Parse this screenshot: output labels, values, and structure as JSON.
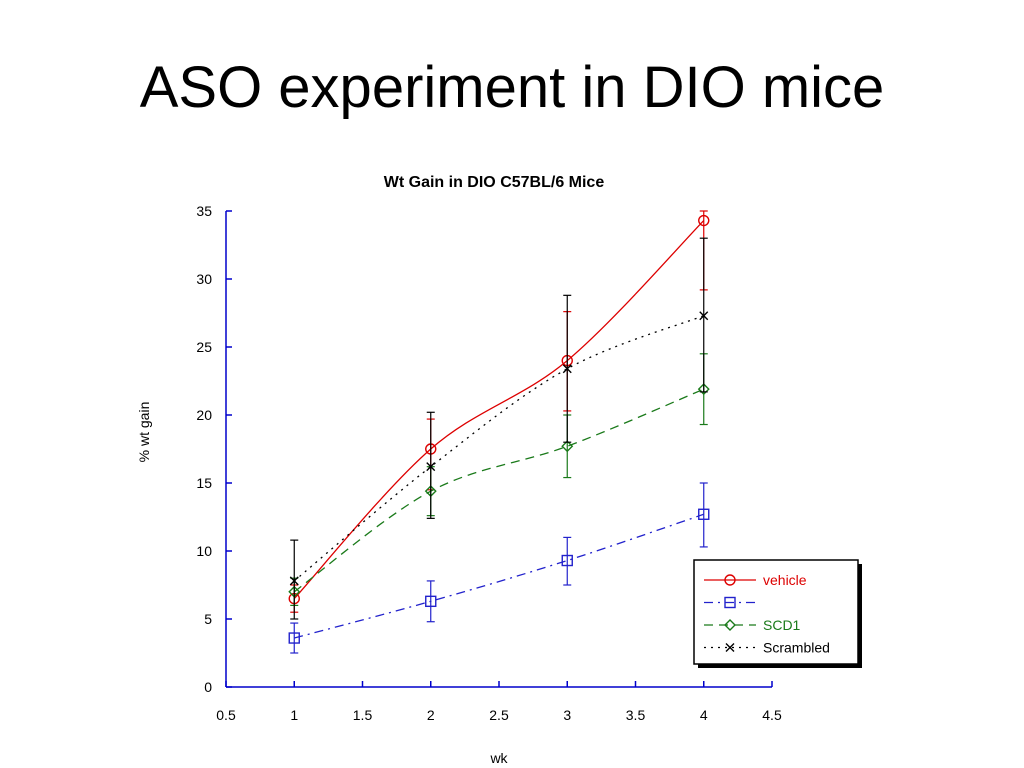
{
  "slide": {
    "title": "ASO experiment in DIO mice"
  },
  "colors": {
    "axis": "#0000cc",
    "vehicle": "#dd0000",
    "blue_series": "#2222cc",
    "scd1": "#1a7a1a",
    "scrambled": "#000000"
  },
  "chart_data": {
    "type": "line",
    "title": "Wt Gain in DIO C57BL/6 Mice",
    "xlabel": "wk",
    "ylabel": "% wt gain",
    "xlim": [
      0.5,
      4.5
    ],
    "ylim": [
      0,
      35
    ],
    "x_ticks": [
      "0.5",
      "1",
      "1.5",
      "2",
      "2.5",
      "3",
      "3.5",
      "4",
      "4.5"
    ],
    "y_ticks": [
      "0",
      "5",
      "10",
      "15",
      "20",
      "25",
      "30",
      "35"
    ],
    "grid": false,
    "legend_position": "bottom-right",
    "series": [
      {
        "name": "vehicle",
        "color_key": "vehicle",
        "marker": "circle",
        "line_style": "solid",
        "x": [
          1,
          2,
          3,
          4
        ],
        "y": [
          6.5,
          17.5,
          24.0,
          34.3
        ],
        "err_low": [
          5.5,
          14.5,
          20.3,
          29.2
        ],
        "err_high": [
          7.5,
          19.7,
          27.6,
          35.0
        ]
      },
      {
        "name": "",
        "color_key": "blue_series",
        "marker": "square",
        "line_style": "dashdot",
        "x": [
          1,
          2,
          3,
          4
        ],
        "y": [
          3.6,
          6.3,
          9.3,
          12.7
        ],
        "err_low": [
          2.5,
          4.8,
          7.5,
          10.3
        ],
        "err_high": [
          4.7,
          7.8,
          11.0,
          15.0
        ]
      },
      {
        "name": "SCD1",
        "color_key": "scd1",
        "marker": "diamond",
        "line_style": "dashed",
        "x": [
          1,
          2,
          3,
          4
        ],
        "y": [
          7.0,
          14.4,
          17.7,
          21.9
        ],
        "err_low": [
          6.0,
          12.6,
          15.4,
          19.3
        ],
        "err_high": [
          8.0,
          16.2,
          20.0,
          24.5
        ]
      },
      {
        "name": "Scrambled",
        "color_key": "scrambled",
        "marker": "x",
        "line_style": "dotted",
        "x": [
          1,
          2,
          3,
          4
        ],
        "y": [
          7.8,
          16.2,
          23.4,
          27.3
        ],
        "err_low": [
          5.0,
          12.4,
          18.0,
          21.7
        ],
        "err_high": [
          10.8,
          20.2,
          28.8,
          33.0
        ]
      }
    ]
  }
}
